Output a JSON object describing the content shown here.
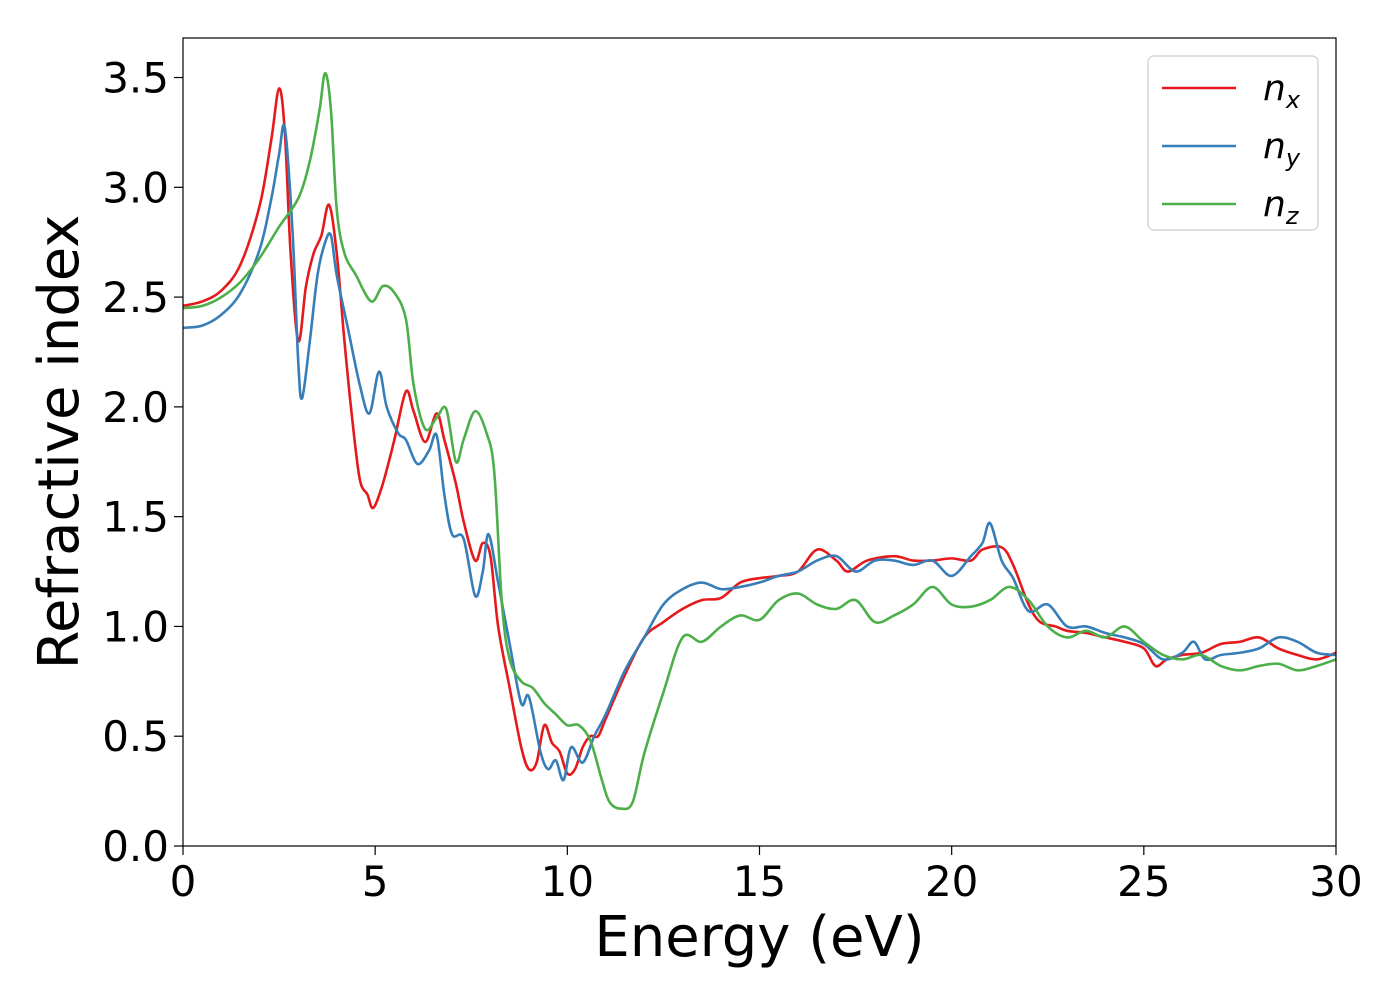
{
  "chart_data": {
    "type": "line",
    "title": "",
    "xlabel": "Energy (eV)",
    "ylabel": "Refractive index",
    "xlim": [
      0,
      30
    ],
    "ylim": [
      0,
      3.68
    ],
    "xticks": [
      0,
      5,
      10,
      15,
      20,
      25,
      30
    ],
    "xtick_labels": [
      "0",
      "5",
      "10",
      "15",
      "20",
      "25",
      "30"
    ],
    "yticks": [
      0.0,
      0.5,
      1.0,
      1.5,
      2.0,
      2.5,
      3.0,
      3.5
    ],
    "ytick_labels": [
      "0.0",
      "0.5",
      "1.0",
      "1.5",
      "2.0",
      "2.5",
      "3.0",
      "3.5"
    ],
    "grid": false,
    "legend_position": "top-right",
    "series": [
      {
        "name": "n",
        "subscript": "x",
        "color": "#e41a1c",
        "points": [
          [
            0,
            2.46
          ],
          [
            0.5,
            2.48
          ],
          [
            1.0,
            2.53
          ],
          [
            1.5,
            2.65
          ],
          [
            2.0,
            2.92
          ],
          [
            2.3,
            3.22
          ],
          [
            2.5,
            3.45
          ],
          [
            2.65,
            3.25
          ],
          [
            2.8,
            2.7
          ],
          [
            3.0,
            2.3
          ],
          [
            3.2,
            2.55
          ],
          [
            3.4,
            2.7
          ],
          [
            3.6,
            2.78
          ],
          [
            3.8,
            2.92
          ],
          [
            4.0,
            2.7
          ],
          [
            4.2,
            2.3
          ],
          [
            4.4,
            1.95
          ],
          [
            4.6,
            1.67
          ],
          [
            4.8,
            1.6
          ],
          [
            4.95,
            1.54
          ],
          [
            5.2,
            1.65
          ],
          [
            5.5,
            1.85
          ],
          [
            5.8,
            2.07
          ],
          [
            6.0,
            1.98
          ],
          [
            6.3,
            1.84
          ],
          [
            6.6,
            1.97
          ],
          [
            6.8,
            1.85
          ],
          [
            7.1,
            1.65
          ],
          [
            7.3,
            1.48
          ],
          [
            7.6,
            1.3
          ],
          [
            7.8,
            1.38
          ],
          [
            8.0,
            1.32
          ],
          [
            8.2,
            1.0
          ],
          [
            8.5,
            0.72
          ],
          [
            8.8,
            0.45
          ],
          [
            9.0,
            0.35
          ],
          [
            9.2,
            0.38
          ],
          [
            9.4,
            0.55
          ],
          [
            9.6,
            0.47
          ],
          [
            9.8,
            0.43
          ],
          [
            10.0,
            0.33
          ],
          [
            10.2,
            0.35
          ],
          [
            10.4,
            0.45
          ],
          [
            10.6,
            0.5
          ],
          [
            10.8,
            0.5
          ],
          [
            11.0,
            0.58
          ],
          [
            11.5,
            0.78
          ],
          [
            12.0,
            0.95
          ],
          [
            12.5,
            1.02
          ],
          [
            13.0,
            1.08
          ],
          [
            13.5,
            1.12
          ],
          [
            14.0,
            1.13
          ],
          [
            14.5,
            1.2
          ],
          [
            15.0,
            1.22
          ],
          [
            15.5,
            1.23
          ],
          [
            16.0,
            1.25
          ],
          [
            16.5,
            1.35
          ],
          [
            17.0,
            1.3
          ],
          [
            17.3,
            1.25
          ],
          [
            17.8,
            1.3
          ],
          [
            18.5,
            1.32
          ],
          [
            19.0,
            1.3
          ],
          [
            19.5,
            1.3
          ],
          [
            20.0,
            1.31
          ],
          [
            20.5,
            1.3
          ],
          [
            20.8,
            1.35
          ],
          [
            21.3,
            1.36
          ],
          [
            21.6,
            1.28
          ],
          [
            22.0,
            1.1
          ],
          [
            22.3,
            1.02
          ],
          [
            22.7,
            1.0
          ],
          [
            23.0,
            0.98
          ],
          [
            23.5,
            0.97
          ],
          [
            24.0,
            0.95
          ],
          [
            24.5,
            0.93
          ],
          [
            25.0,
            0.9
          ],
          [
            25.3,
            0.82
          ],
          [
            25.6,
            0.85
          ],
          [
            26.0,
            0.87
          ],
          [
            26.5,
            0.88
          ],
          [
            27.0,
            0.92
          ],
          [
            27.5,
            0.93
          ],
          [
            28.0,
            0.95
          ],
          [
            28.5,
            0.9
          ],
          [
            29.0,
            0.87
          ],
          [
            29.5,
            0.85
          ],
          [
            30.0,
            0.88
          ]
        ]
      },
      {
        "name": "n",
        "subscript": "y",
        "color": "#377eb8",
        "points": [
          [
            0,
            2.36
          ],
          [
            0.5,
            2.37
          ],
          [
            1.0,
            2.42
          ],
          [
            1.5,
            2.52
          ],
          [
            2.0,
            2.72
          ],
          [
            2.3,
            2.95
          ],
          [
            2.5,
            3.15
          ],
          [
            2.65,
            3.27
          ],
          [
            2.85,
            2.8
          ],
          [
            3.0,
            2.2
          ],
          [
            3.1,
            2.04
          ],
          [
            3.3,
            2.3
          ],
          [
            3.5,
            2.6
          ],
          [
            3.7,
            2.75
          ],
          [
            3.85,
            2.78
          ],
          [
            4.0,
            2.6
          ],
          [
            4.3,
            2.35
          ],
          [
            4.6,
            2.1
          ],
          [
            4.85,
            1.97
          ],
          [
            5.1,
            2.16
          ],
          [
            5.3,
            2.0
          ],
          [
            5.6,
            1.88
          ],
          [
            5.8,
            1.85
          ],
          [
            6.1,
            1.74
          ],
          [
            6.4,
            1.8
          ],
          [
            6.6,
            1.87
          ],
          [
            6.8,
            1.6
          ],
          [
            7.0,
            1.42
          ],
          [
            7.3,
            1.4
          ],
          [
            7.6,
            1.14
          ],
          [
            7.8,
            1.25
          ],
          [
            7.95,
            1.42
          ],
          [
            8.2,
            1.2
          ],
          [
            8.5,
            0.92
          ],
          [
            8.8,
            0.65
          ],
          [
            9.0,
            0.68
          ],
          [
            9.3,
            0.43
          ],
          [
            9.5,
            0.35
          ],
          [
            9.7,
            0.39
          ],
          [
            9.9,
            0.3
          ],
          [
            10.1,
            0.45
          ],
          [
            10.4,
            0.38
          ],
          [
            10.7,
            0.5
          ],
          [
            11.0,
            0.6
          ],
          [
            11.5,
            0.8
          ],
          [
            12.0,
            0.95
          ],
          [
            12.5,
            1.1
          ],
          [
            13.0,
            1.17
          ],
          [
            13.5,
            1.2
          ],
          [
            14.0,
            1.17
          ],
          [
            14.5,
            1.18
          ],
          [
            15.0,
            1.2
          ],
          [
            15.5,
            1.23
          ],
          [
            16.0,
            1.25
          ],
          [
            16.5,
            1.3
          ],
          [
            17.0,
            1.32
          ],
          [
            17.5,
            1.25
          ],
          [
            18.0,
            1.3
          ],
          [
            18.5,
            1.3
          ],
          [
            19.0,
            1.28
          ],
          [
            19.5,
            1.3
          ],
          [
            20.0,
            1.23
          ],
          [
            20.5,
            1.32
          ],
          [
            20.8,
            1.38
          ],
          [
            21.0,
            1.47
          ],
          [
            21.3,
            1.3
          ],
          [
            21.6,
            1.22
          ],
          [
            22.0,
            1.07
          ],
          [
            22.5,
            1.1
          ],
          [
            23.0,
            1.0
          ],
          [
            23.5,
            1.0
          ],
          [
            24.0,
            0.97
          ],
          [
            24.5,
            0.95
          ],
          [
            25.0,
            0.92
          ],
          [
            25.5,
            0.85
          ],
          [
            26.0,
            0.88
          ],
          [
            26.3,
            0.93
          ],
          [
            26.6,
            0.85
          ],
          [
            27.0,
            0.87
          ],
          [
            27.5,
            0.88
          ],
          [
            28.0,
            0.9
          ],
          [
            28.5,
            0.95
          ],
          [
            29.0,
            0.93
          ],
          [
            29.5,
            0.88
          ],
          [
            30.0,
            0.87
          ]
        ]
      },
      {
        "name": "n",
        "subscript": "z",
        "color": "#4daf4a",
        "points": [
          [
            0,
            2.45
          ],
          [
            0.5,
            2.46
          ],
          [
            1.0,
            2.5
          ],
          [
            1.5,
            2.57
          ],
          [
            2.0,
            2.68
          ],
          [
            2.5,
            2.82
          ],
          [
            3.0,
            2.95
          ],
          [
            3.3,
            3.12
          ],
          [
            3.55,
            3.35
          ],
          [
            3.7,
            3.52
          ],
          [
            3.85,
            3.35
          ],
          [
            4.0,
            2.9
          ],
          [
            4.2,
            2.7
          ],
          [
            4.5,
            2.6
          ],
          [
            4.9,
            2.48
          ],
          [
            5.2,
            2.55
          ],
          [
            5.5,
            2.52
          ],
          [
            5.8,
            2.4
          ],
          [
            6.0,
            2.1
          ],
          [
            6.3,
            1.9
          ],
          [
            6.6,
            1.95
          ],
          [
            6.85,
            1.99
          ],
          [
            7.1,
            1.75
          ],
          [
            7.3,
            1.85
          ],
          [
            7.6,
            1.98
          ],
          [
            7.9,
            1.88
          ],
          [
            8.1,
            1.7
          ],
          [
            8.3,
            1.1
          ],
          [
            8.5,
            0.85
          ],
          [
            8.8,
            0.75
          ],
          [
            9.1,
            0.72
          ],
          [
            9.4,
            0.65
          ],
          [
            9.7,
            0.6
          ],
          [
            10.0,
            0.55
          ],
          [
            10.3,
            0.55
          ],
          [
            10.6,
            0.48
          ],
          [
            10.9,
            0.3
          ],
          [
            11.1,
            0.2
          ],
          [
            11.4,
            0.17
          ],
          [
            11.7,
            0.2
          ],
          [
            12.0,
            0.42
          ],
          [
            12.5,
            0.7
          ],
          [
            13.0,
            0.95
          ],
          [
            13.5,
            0.93
          ],
          [
            14.0,
            1.0
          ],
          [
            14.5,
            1.05
          ],
          [
            15.0,
            1.03
          ],
          [
            15.5,
            1.12
          ],
          [
            16.0,
            1.15
          ],
          [
            16.5,
            1.1
          ],
          [
            17.0,
            1.08
          ],
          [
            17.5,
            1.12
          ],
          [
            18.0,
            1.02
          ],
          [
            18.5,
            1.05
          ],
          [
            19.0,
            1.1
          ],
          [
            19.5,
            1.18
          ],
          [
            20.0,
            1.1
          ],
          [
            20.5,
            1.09
          ],
          [
            21.0,
            1.12
          ],
          [
            21.5,
            1.18
          ],
          [
            22.0,
            1.12
          ],
          [
            22.5,
            1.0
          ],
          [
            23.0,
            0.95
          ],
          [
            23.5,
            0.98
          ],
          [
            24.0,
            0.95
          ],
          [
            24.5,
            1.0
          ],
          [
            25.0,
            0.93
          ],
          [
            25.5,
            0.87
          ],
          [
            26.0,
            0.85
          ],
          [
            26.5,
            0.87
          ],
          [
            27.0,
            0.82
          ],
          [
            27.5,
            0.8
          ],
          [
            28.0,
            0.82
          ],
          [
            28.5,
            0.83
          ],
          [
            29.0,
            0.8
          ],
          [
            29.5,
            0.82
          ],
          [
            30.0,
            0.85
          ]
        ]
      }
    ]
  }
}
